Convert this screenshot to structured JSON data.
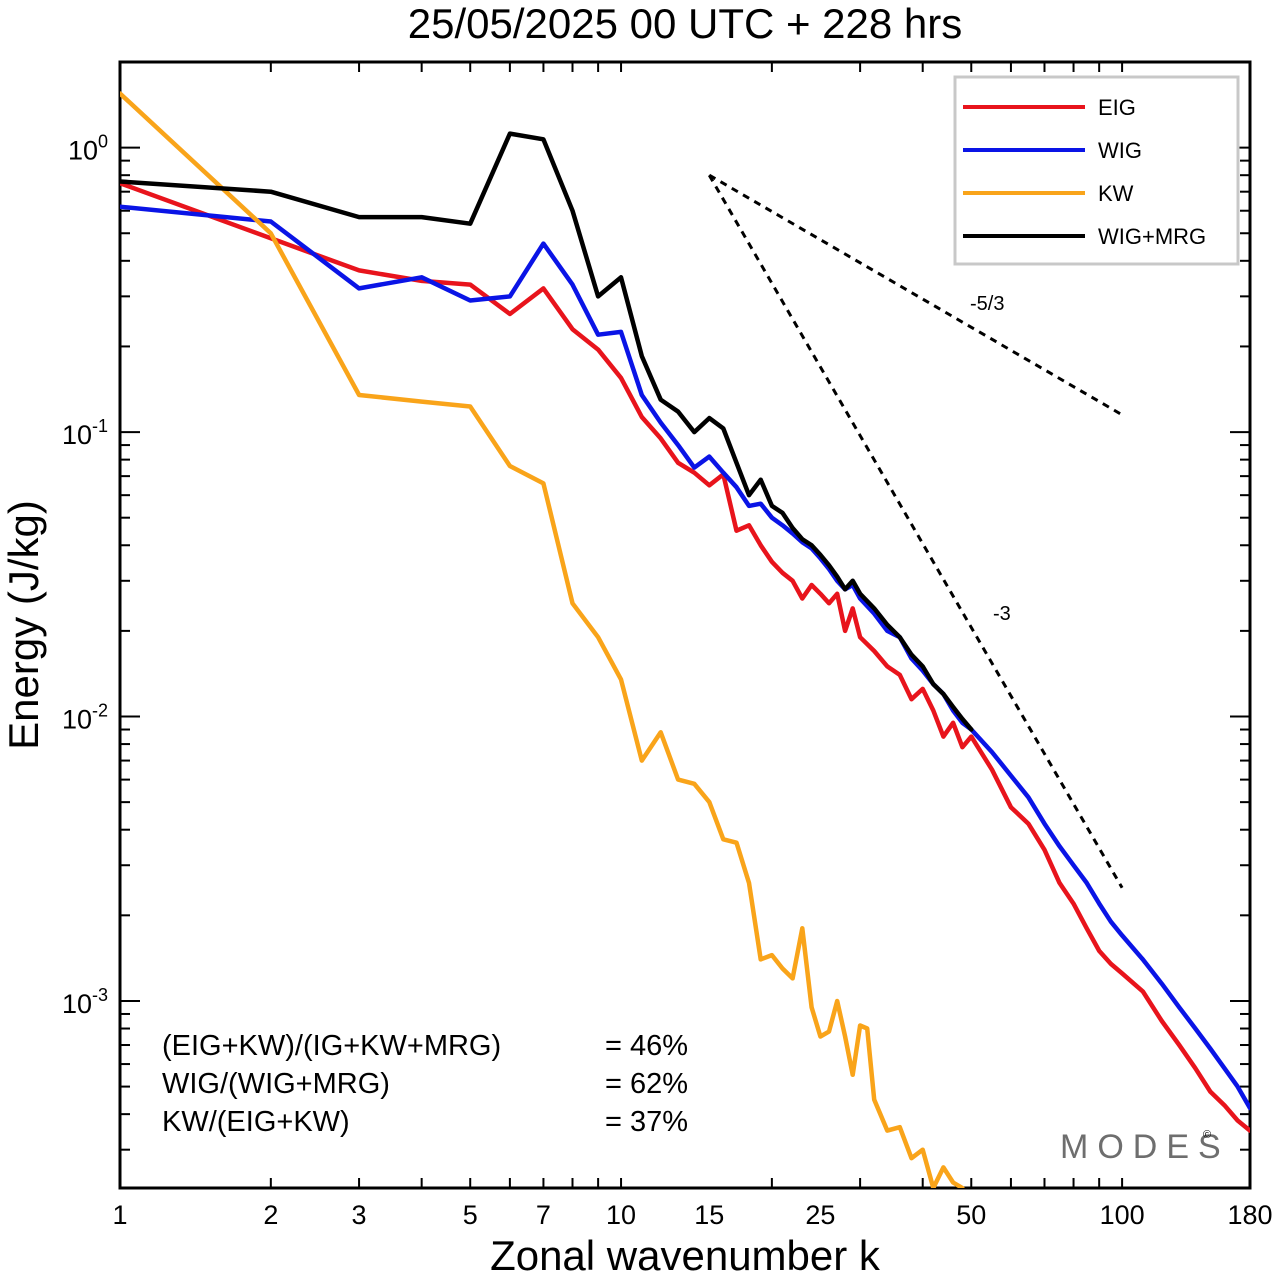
{
  "chart_data": {
    "type": "line",
    "title": "25/05/2025  00 UTC  + 228 hrs",
    "xlabel": "Zonal wavenumber k",
    "ylabel": "Energy (J/kg)",
    "xscale": "log",
    "yscale": "log",
    "xlim": [
      1,
      180
    ],
    "ylim": [
      0.00022,
      2.0
    ],
    "grid": false,
    "legend_position": "top-right",
    "x_ticks": [
      1,
      2,
      3,
      5,
      7,
      10,
      15,
      25,
      50,
      100,
      180
    ],
    "x_tick_labels": [
      "1",
      "2",
      "3",
      "5",
      "7",
      "10",
      "15",
      "25",
      "50",
      "100",
      "180"
    ],
    "y_ticks": [
      1,
      0.1,
      0.01,
      0.001
    ],
    "y_tick_labels": [
      {
        "base": "10",
        "exp": "0"
      },
      {
        "base": "10",
        "exp": "-1"
      },
      {
        "base": "10",
        "exp": "-2"
      },
      {
        "base": "10",
        "exp": "-3"
      }
    ],
    "series": [
      {
        "name": "EIG",
        "color": "#e8141c",
        "points": [
          [
            1,
            0.75
          ],
          [
            2,
            0.48
          ],
          [
            3,
            0.37
          ],
          [
            4,
            0.34
          ],
          [
            5,
            0.33
          ],
          [
            6,
            0.26
          ],
          [
            7,
            0.32
          ],
          [
            8,
            0.23
          ],
          [
            9,
            0.195
          ],
          [
            10,
            0.155
          ],
          [
            11,
            0.113
          ],
          [
            12,
            0.095
          ],
          [
            13,
            0.078
          ],
          [
            14,
            0.072
          ],
          [
            15,
            0.065
          ],
          [
            16,
            0.071
          ],
          [
            17,
            0.045
          ],
          [
            18,
            0.047
          ],
          [
            19,
            0.04
          ],
          [
            20,
            0.035
          ],
          [
            21,
            0.032
          ],
          [
            22,
            0.03
          ],
          [
            23,
            0.026
          ],
          [
            24,
            0.029
          ],
          [
            25,
            0.027
          ],
          [
            26,
            0.025
          ],
          [
            27,
            0.027
          ],
          [
            28,
            0.02
          ],
          [
            29,
            0.024
          ],
          [
            30,
            0.019
          ],
          [
            32,
            0.017
          ],
          [
            34,
            0.015
          ],
          [
            36,
            0.014
          ],
          [
            38,
            0.0115
          ],
          [
            40,
            0.0125
          ],
          [
            42,
            0.0105
          ],
          [
            44,
            0.0085
          ],
          [
            46,
            0.0095
          ],
          [
            48,
            0.0078
          ],
          [
            50,
            0.0085
          ],
          [
            55,
            0.0065
          ],
          [
            60,
            0.0048
          ],
          [
            65,
            0.0042
          ],
          [
            70,
            0.0034
          ],
          [
            75,
            0.0026
          ],
          [
            80,
            0.0022
          ],
          [
            85,
            0.0018
          ],
          [
            90,
            0.0015
          ],
          [
            95,
            0.00135
          ],
          [
            100,
            0.00125
          ],
          [
            110,
            0.00108
          ],
          [
            120,
            0.00085
          ],
          [
            130,
            0.0007
          ],
          [
            140,
            0.00058
          ],
          [
            150,
            0.00048
          ],
          [
            160,
            0.00043
          ],
          [
            170,
            0.00038
          ],
          [
            180,
            0.00035
          ]
        ]
      },
      {
        "name": "WIG",
        "color": "#0a14e6",
        "points": [
          [
            1,
            0.62
          ],
          [
            2,
            0.55
          ],
          [
            3,
            0.32
          ],
          [
            4,
            0.35
          ],
          [
            5,
            0.29
          ],
          [
            6,
            0.3
          ],
          [
            7,
            0.46
          ],
          [
            8,
            0.33
          ],
          [
            9,
            0.22
          ],
          [
            10,
            0.225
          ],
          [
            11,
            0.135
          ],
          [
            12,
            0.108
          ],
          [
            13,
            0.09
          ],
          [
            14,
            0.075
          ],
          [
            15,
            0.082
          ],
          [
            16,
            0.072
          ],
          [
            17,
            0.064
          ],
          [
            18,
            0.055
          ],
          [
            19,
            0.056
          ],
          [
            20,
            0.05
          ],
          [
            21,
            0.047
          ],
          [
            22,
            0.044
          ],
          [
            23,
            0.041
          ],
          [
            24,
            0.039
          ],
          [
            25,
            0.036
          ],
          [
            26,
            0.033
          ],
          [
            27,
            0.03
          ],
          [
            28,
            0.028
          ],
          [
            29,
            0.029
          ],
          [
            30,
            0.026
          ],
          [
            32,
            0.023
          ],
          [
            34,
            0.02
          ],
          [
            36,
            0.019
          ],
          [
            38,
            0.016
          ],
          [
            40,
            0.0145
          ],
          [
            42,
            0.013
          ],
          [
            44,
            0.012
          ],
          [
            46,
            0.0105
          ],
          [
            48,
            0.0095
          ],
          [
            50,
            0.009
          ],
          [
            55,
            0.0075
          ],
          [
            60,
            0.0062
          ],
          [
            65,
            0.0052
          ],
          [
            70,
            0.0042
          ],
          [
            75,
            0.0035
          ],
          [
            80,
            0.003
          ],
          [
            85,
            0.0026
          ],
          [
            90,
            0.0022
          ],
          [
            95,
            0.0019
          ],
          [
            100,
            0.0017
          ],
          [
            110,
            0.0014
          ],
          [
            120,
            0.00115
          ],
          [
            130,
            0.00095
          ],
          [
            140,
            0.0008
          ],
          [
            150,
            0.00068
          ],
          [
            160,
            0.00058
          ],
          [
            170,
            0.0005
          ],
          [
            180,
            0.00042
          ]
        ]
      },
      {
        "name": "KW",
        "color": "#f9a41a",
        "points": [
          [
            1,
            1.55
          ],
          [
            2,
            0.5
          ],
          [
            3,
            0.135
          ],
          [
            4,
            0.128
          ],
          [
            5,
            0.123
          ],
          [
            6,
            0.076
          ],
          [
            7,
            0.066
          ],
          [
            8,
            0.025
          ],
          [
            9,
            0.019
          ],
          [
            10,
            0.0135
          ],
          [
            11,
            0.007
          ],
          [
            12,
            0.0088
          ],
          [
            13,
            0.006
          ],
          [
            14,
            0.0058
          ],
          [
            15,
            0.005
          ],
          [
            16,
            0.0037
          ],
          [
            17,
            0.0036
          ],
          [
            18,
            0.0026
          ],
          [
            19,
            0.0014
          ],
          [
            20,
            0.00145
          ],
          [
            21,
            0.0013
          ],
          [
            22,
            0.0012
          ],
          [
            23,
            0.0018
          ],
          [
            24,
            0.00095
          ],
          [
            25,
            0.00075
          ],
          [
            26,
            0.00078
          ],
          [
            27,
            0.001
          ],
          [
            28,
            0.00075
          ],
          [
            29,
            0.00055
          ],
          [
            30,
            0.00082
          ],
          [
            31,
            0.0008
          ],
          [
            32,
            0.00045
          ],
          [
            34,
            0.00035
          ],
          [
            36,
            0.00036
          ],
          [
            38,
            0.00028
          ],
          [
            40,
            0.0003
          ],
          [
            42,
            0.00022
          ],
          [
            44,
            0.00026
          ],
          [
            46,
            0.00023
          ],
          [
            48,
            0.00022
          ]
        ]
      },
      {
        "name": "WIG+MRG",
        "color": "#000000",
        "points": [
          [
            1,
            0.76
          ],
          [
            2,
            0.7
          ],
          [
            3,
            0.57
          ],
          [
            4,
            0.57
          ],
          [
            5,
            0.54
          ],
          [
            6,
            1.12
          ],
          [
            7,
            1.07
          ],
          [
            8,
            0.6
          ],
          [
            9,
            0.3
          ],
          [
            10,
            0.35
          ],
          [
            11,
            0.185
          ],
          [
            12,
            0.13
          ],
          [
            13,
            0.118
          ],
          [
            14,
            0.1
          ],
          [
            15,
            0.112
          ],
          [
            16,
            0.103
          ],
          [
            17,
            0.078
          ],
          [
            18,
            0.06
          ],
          [
            19,
            0.068
          ],
          [
            20,
            0.055
          ],
          [
            21,
            0.052
          ],
          [
            22,
            0.046
          ],
          [
            23,
            0.042
          ],
          [
            24,
            0.04
          ],
          [
            25,
            0.037
          ],
          [
            26,
            0.034
          ],
          [
            27,
            0.031
          ],
          [
            28,
            0.028
          ],
          [
            29,
            0.03
          ],
          [
            30,
            0.027
          ],
          [
            32,
            0.024
          ],
          [
            34,
            0.021
          ],
          [
            36,
            0.019
          ],
          [
            38,
            0.0165
          ],
          [
            40,
            0.015
          ],
          [
            42,
            0.013
          ],
          [
            44,
            0.012
          ],
          [
            46,
            0.0108
          ],
          [
            48,
            0.0098
          ],
          [
            50,
            0.009
          ]
        ]
      }
    ],
    "reference_lines": [
      {
        "label": "-5/3",
        "from": [
          15,
          0.8
        ],
        "to": [
          100,
          0.115
        ]
      },
      {
        "label": "-3",
        "from": [
          15,
          0.8
        ],
        "to": [
          100,
          0.0025
        ]
      }
    ],
    "annotations": [
      {
        "label": "(EIG+KW)/(IG+KW+MRG)",
        "value": "= 46%"
      },
      {
        "label": "WIG/(WIG+MRG)",
        "value": "= 62%"
      },
      {
        "label": "KW/(EIG+KW)",
        "value": "= 37%"
      }
    ],
    "watermark": "MODES",
    "watermark_symbol": "©"
  }
}
